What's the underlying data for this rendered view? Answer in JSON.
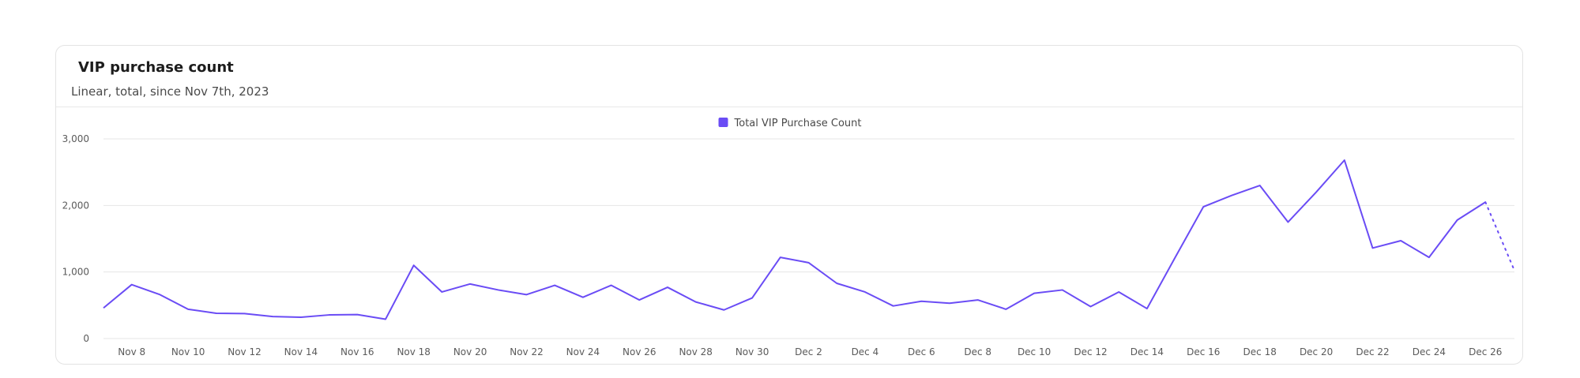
{
  "card": {
    "title": "VIP purchase count",
    "subtitle": "Linear, total, since Nov 7th, 2023"
  },
  "colors": {
    "series": "#6a4cf5",
    "grid": "#e6e6e6"
  },
  "chart_data": {
    "type": "line",
    "title": "VIP purchase count",
    "subtitle": "Linear, total, since Nov 7th, 2023",
    "legend": {
      "position": "top-center"
    },
    "grid": true,
    "ylim": [
      0,
      3000
    ],
    "y_ticks": [
      "0",
      "1,000",
      "2,000",
      "3,000"
    ],
    "y_tick_values": [
      0,
      1000,
      2000,
      3000
    ],
    "x": [
      "Nov 7",
      "Nov 8",
      "Nov 9",
      "Nov 10",
      "Nov 11",
      "Nov 12",
      "Nov 13",
      "Nov 14",
      "Nov 15",
      "Nov 16",
      "Nov 17",
      "Nov 18",
      "Nov 19",
      "Nov 20",
      "Nov 21",
      "Nov 22",
      "Nov 23",
      "Nov 24",
      "Nov 25",
      "Nov 26",
      "Nov 27",
      "Nov 28",
      "Nov 29",
      "Nov 30",
      "Dec 1",
      "Dec 2",
      "Dec 3",
      "Dec 4",
      "Dec 5",
      "Dec 6",
      "Dec 7",
      "Dec 8",
      "Dec 9",
      "Dec 10",
      "Dec 11",
      "Dec 12",
      "Dec 13",
      "Dec 14",
      "Dec 15",
      "Dec 16",
      "Dec 17",
      "Dec 18",
      "Dec 19",
      "Dec 20",
      "Dec 21",
      "Dec 22",
      "Dec 23",
      "Dec 24",
      "Dec 25",
      "Dec 26",
      "Dec 27"
    ],
    "x_tick_labels": [
      "Nov 8",
      "Nov 10",
      "Nov 12",
      "Nov 14",
      "Nov 16",
      "Nov 18",
      "Nov 20",
      "Nov 22",
      "Nov 24",
      "Nov 26",
      "Nov 28",
      "Nov 30",
      "Dec 2",
      "Dec 4",
      "Dec 6",
      "Dec 8",
      "Dec 10",
      "Dec 12",
      "Dec 14",
      "Dec 16",
      "Dec 18",
      "Dec 20",
      "Dec 22",
      "Dec 24",
      "Dec 26"
    ],
    "series": [
      {
        "name": "Total VIP Purchase Count",
        "values": [
          460,
          810,
          660,
          440,
          380,
          375,
          330,
          320,
          355,
          360,
          290,
          1100,
          700,
          820,
          730,
          660,
          800,
          620,
          800,
          580,
          770,
          550,
          430,
          610,
          1220,
          1140,
          830,
          700,
          490,
          560,
          530,
          580,
          440,
          680,
          730,
          480,
          700,
          450,
          1220,
          1980,
          2150,
          2300,
          1750,
          2200,
          2680,
          1360,
          1470,
          1220,
          1780,
          2050,
          1050
        ],
        "incomplete_last_point": true
      }
    ]
  }
}
